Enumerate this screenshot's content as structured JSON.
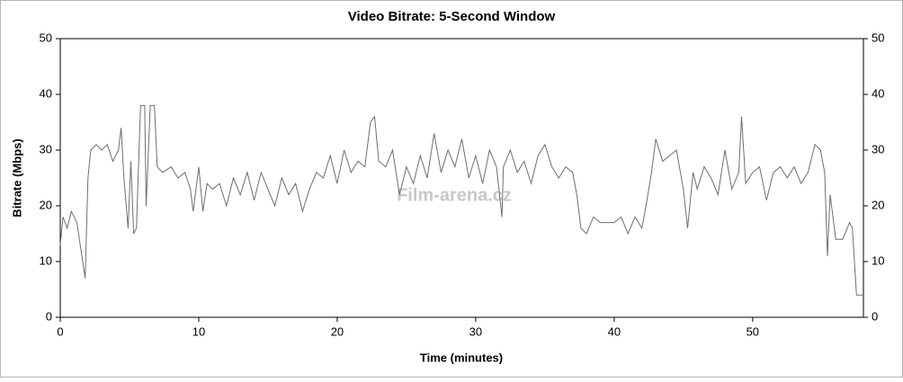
{
  "chart_data": {
    "type": "line",
    "title": "Video Bitrate: 5-Second Window",
    "x_label": "Time (minutes)",
    "y_label": "Bitrate (Mbps)",
    "annotation": "Film-arena.cz",
    "xlim": [
      0,
      58
    ],
    "xticks": [
      0,
      10,
      20,
      30,
      40,
      50
    ],
    "ylim": [
      0,
      50
    ],
    "yticks": [
      0,
      10,
      20,
      30,
      40,
      50
    ],
    "y2lim": [
      0,
      50
    ],
    "y2ticks": [
      0,
      10,
      20,
      30,
      40,
      50
    ],
    "color": "#6e6e6e",
    "x": [
      0,
      0.2,
      0.5,
      0.8,
      1.2,
      1.5,
      1.8,
      2,
      2.2,
      2.6,
      3,
      3.4,
      3.8,
      4.2,
      4.4,
      4.6,
      4.9,
      5.1,
      5.3,
      5.5,
      5.8,
      6.1,
      6.2,
      6.5,
      6.8,
      7,
      7.4,
      8,
      8.5,
      9,
      9.4,
      9.6,
      10,
      10.3,
      10.6,
      11,
      11.5,
      12,
      12.5,
      13,
      13.5,
      14,
      14.5,
      15,
      15.5,
      16,
      16.5,
      17,
      17.5,
      18,
      18.5,
      19,
      19.5,
      20,
      20.5,
      21,
      21.5,
      22,
      22.4,
      22.7,
      23,
      23.5,
      24,
      24.5,
      25,
      25.5,
      26,
      26.5,
      27,
      27.5,
      28,
      28.5,
      29,
      29.5,
      30,
      30.5,
      31,
      31.5,
      31.9,
      32,
      32.5,
      33,
      33.5,
      34,
      34.5,
      35,
      35.5,
      36,
      36.5,
      37,
      37.3,
      37.6,
      38,
      38.5,
      39,
      40,
      40.5,
      41,
      41.5,
      42,
      42.3,
      42.7,
      43,
      43.5,
      44,
      44.5,
      45,
      45.3,
      45.7,
      46,
      46.5,
      47,
      47.5,
      48,
      48.5,
      49,
      49.2,
      49.5,
      50,
      50.5,
      51,
      51.5,
      52,
      52.5,
      53,
      53.5,
      54,
      54.5,
      54.9,
      55.2,
      55.4,
      55.6,
      56,
      56.5,
      57,
      57.2,
      57.5,
      58
    ],
    "values": [
      13,
      18,
      16,
      19,
      17,
      12,
      7,
      25,
      30,
      31,
      30,
      31,
      28,
      30,
      34,
      25,
      16,
      28,
      15,
      16,
      38,
      38,
      20,
      38,
      38,
      27,
      26,
      27,
      25,
      26,
      23,
      19,
      27,
      19,
      24,
      23,
      24,
      20,
      25,
      22,
      26,
      21,
      26,
      23,
      20,
      25,
      22,
      24,
      19,
      23,
      26,
      25,
      29,
      24,
      30,
      26,
      28,
      27,
      35,
      36,
      28,
      27,
      30,
      22,
      27,
      24,
      29,
      25,
      33,
      26,
      30,
      27,
      32,
      25,
      29,
      24,
      30,
      27,
      18,
      27,
      30,
      26,
      28,
      24,
      29,
      31,
      27,
      25,
      27,
      26,
      22,
      16,
      15,
      18,
      17,
      17,
      18,
      15,
      18,
      16,
      20,
      26,
      32,
      28,
      29,
      30,
      23,
      16,
      26,
      23,
      27,
      25,
      22,
      30,
      23,
      26,
      36,
      24,
      26,
      27,
      21,
      26,
      27,
      25,
      27,
      24,
      26,
      31,
      30,
      26,
      11,
      22,
      14,
      14,
      17,
      16,
      4,
      4
    ]
  }
}
